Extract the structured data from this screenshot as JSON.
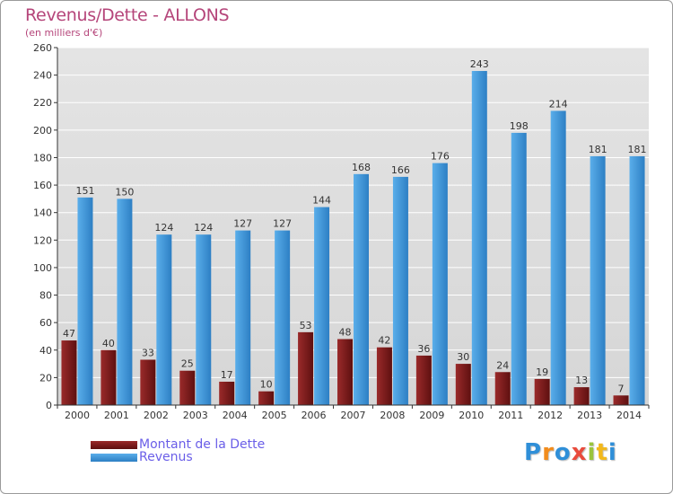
{
  "title": "Revenus/Dette - ALLONS",
  "subtitle": "(en milliers d'€)",
  "colors": {
    "title": "#b5457a",
    "dette": "#7a1a1a",
    "revenus": "#3f95d6",
    "legend_text": "#6a5ee8",
    "axis": "#333333",
    "grid": "#ffffff"
  },
  "legend": {
    "dette_label": "Montant de la Dette",
    "revenus_label": "Revenus"
  },
  "logo": {
    "text": "Proxiti",
    "letter_colors": [
      "#2f8fd8",
      "#f28c1c",
      "#2f8fd8",
      "#e94b3c",
      "#9ac43c",
      "#f2b81c",
      "#2f8fd8"
    ]
  },
  "chart_data": {
    "type": "bar",
    "categories": [
      "2000",
      "2001",
      "2002",
      "2003",
      "2004",
      "2005",
      "2006",
      "2007",
      "2008",
      "2009",
      "2010",
      "2011",
      "2012",
      "2013",
      "2014"
    ],
    "series": [
      {
        "name": "Montant de la Dette",
        "values": [
          47,
          40,
          33,
          25,
          17,
          10,
          53,
          48,
          42,
          36,
          30,
          24,
          19,
          13,
          7
        ]
      },
      {
        "name": "Revenus",
        "values": [
          151,
          150,
          124,
          124,
          127,
          127,
          144,
          168,
          166,
          176,
          243,
          198,
          214,
          181,
          181
        ]
      }
    ],
    "ylim": [
      0,
      260
    ],
    "yticks": [
      0,
      20,
      40,
      60,
      80,
      100,
      120,
      140,
      160,
      180,
      200,
      220,
      240,
      260
    ],
    "grid": true,
    "legend_position": "bottom-left"
  }
}
